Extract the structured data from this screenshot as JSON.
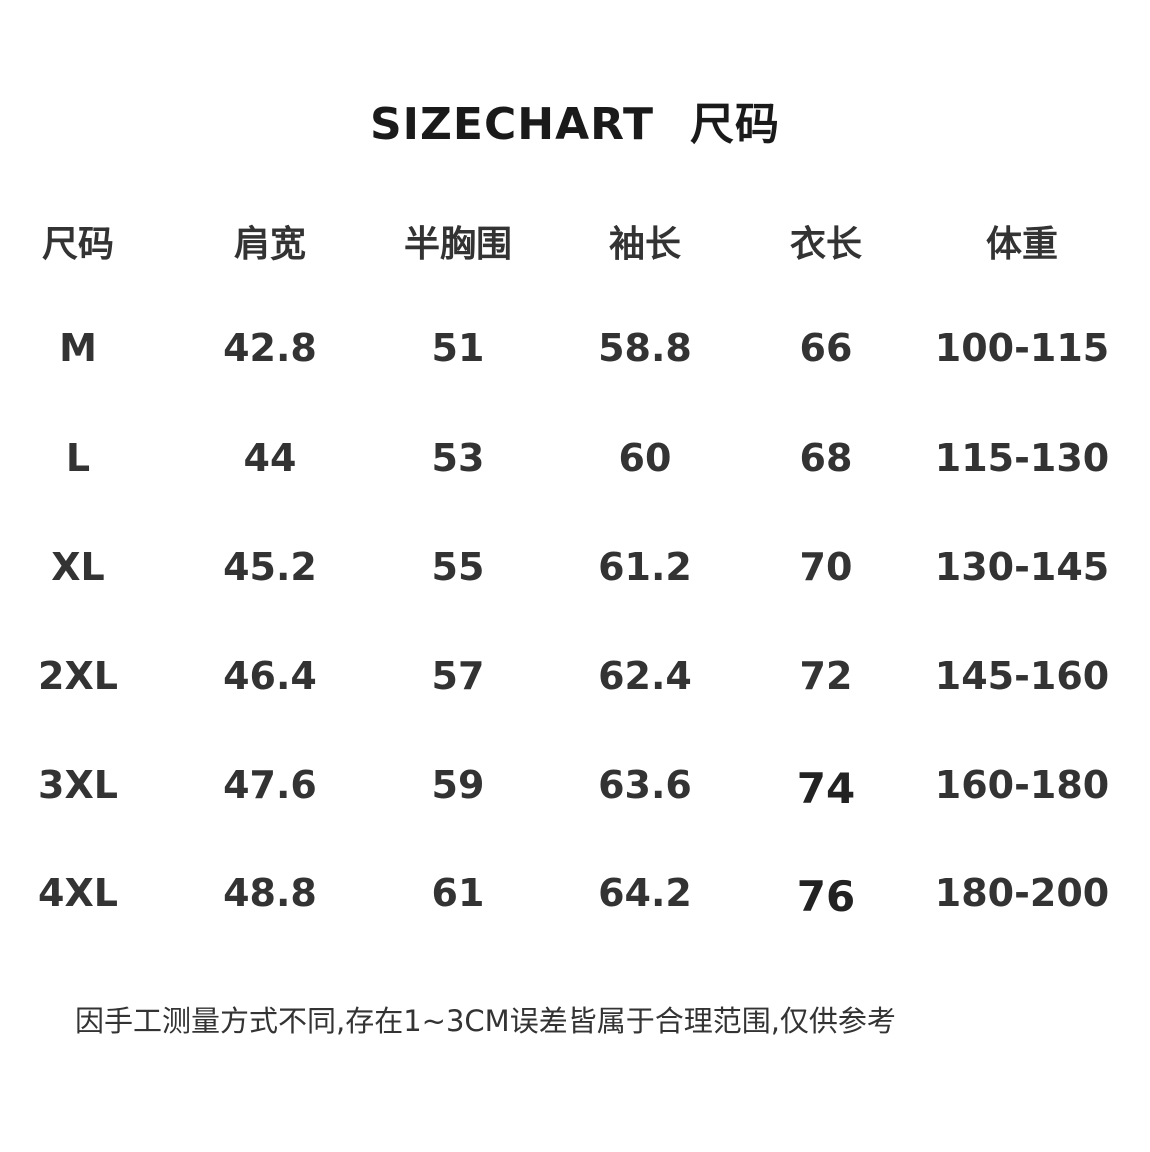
{
  "title": {
    "en": "SIZECHART",
    "zh": "尺码"
  },
  "table": {
    "headers": [
      "尺码",
      "肩宽",
      "半胸围",
      "袖长",
      "衣长",
      "体重"
    ],
    "rows": [
      [
        "M",
        "42.8",
        "51",
        "58.8",
        "66",
        "100-115"
      ],
      [
        "L",
        "44",
        "53",
        "60",
        "68",
        "115-130"
      ],
      [
        "XL",
        "45.2",
        "55",
        "61.2",
        "70",
        "130-145"
      ],
      [
        "2XL",
        "46.4",
        "57",
        "62.4",
        "72",
        "145-160"
      ],
      [
        "3XL",
        "47.6",
        "59",
        "63.6",
        "74",
        "160-180"
      ],
      [
        "4XL",
        "48.8",
        "61",
        "64.2",
        "76",
        "180-200"
      ]
    ]
  },
  "footer": "因手工测量方式不同,存在1~3CM误差皆属于合理范围,仅供参考"
}
